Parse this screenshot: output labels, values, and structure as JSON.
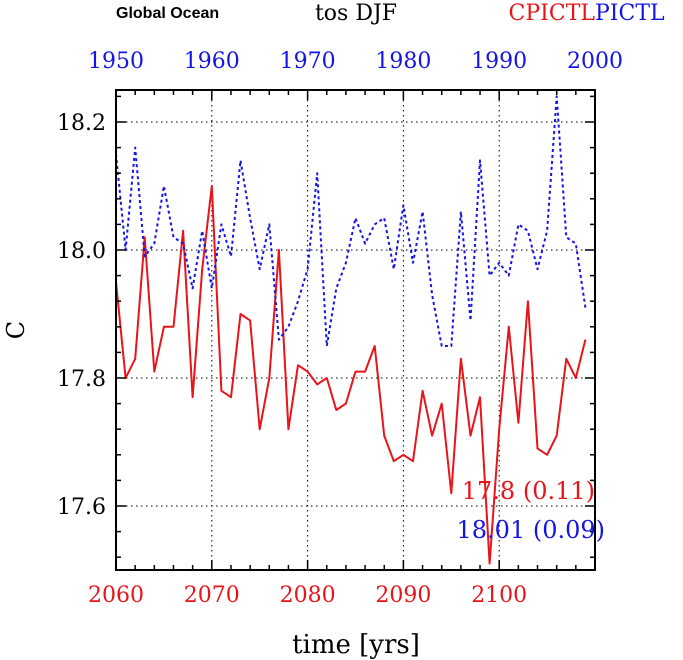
{
  "header": {
    "region": "Global Ocean",
    "variable": "tos DJF",
    "legend_red": "CPICTL",
    "legend_blue": "PICTL"
  },
  "stats": {
    "red": "17.8 (0.11)",
    "blue": "18.01 (0.09)"
  },
  "colors": {
    "red": "#e8141a",
    "blue": "#1414e6",
    "axis": "#000000"
  },
  "chart_data": {
    "type": "line",
    "title": "tos DJF",
    "ylabel": "C",
    "xlabel": "time [yrs]",
    "ylim": [
      17.5,
      18.25
    ],
    "yticks": [
      17.6,
      17.8,
      18.0,
      18.2
    ],
    "ytick_labels": [
      "17.6",
      "17.8",
      "18.0",
      "18.2"
    ],
    "bottom_axis": {
      "range": [
        2060,
        2110
      ],
      "ticks": [
        2060,
        2070,
        2080,
        2090,
        2100
      ],
      "labels": [
        "2060",
        "2070",
        "2080",
        "2090",
        "2100"
      ]
    },
    "top_axis": {
      "range": [
        1950,
        2000
      ],
      "ticks": [
        1950,
        1960,
        1970,
        1980,
        1990,
        2000
      ],
      "labels": [
        "1950",
        "1960",
        "1970",
        "1980",
        "1990",
        "2000"
      ]
    },
    "grid": true,
    "series": [
      {
        "name": "CPICTL",
        "axis": "bottom",
        "style": "solid",
        "x_start": 2060,
        "values": [
          17.95,
          17.8,
          17.83,
          18.02,
          17.81,
          17.88,
          17.88,
          18.03,
          17.77,
          17.97,
          18.1,
          17.78,
          17.77,
          17.9,
          17.89,
          17.72,
          17.8,
          18.0,
          17.72,
          17.82,
          17.81,
          17.79,
          17.8,
          17.75,
          17.76,
          17.81,
          17.81,
          17.85,
          17.71,
          17.67,
          17.68,
          17.67,
          17.78,
          17.71,
          17.76,
          17.62,
          17.83,
          17.71,
          17.77,
          17.51,
          17.72,
          17.88,
          17.73,
          17.92,
          17.69,
          17.68,
          17.71,
          17.83,
          17.8,
          17.86
        ]
      },
      {
        "name": "PICTL",
        "axis": "top",
        "style": "dotted",
        "x_start": 1950,
        "values": [
          18.15,
          18.0,
          18.16,
          17.99,
          18.01,
          18.1,
          18.02,
          18.01,
          17.94,
          18.03,
          17.94,
          18.04,
          17.99,
          18.14,
          18.05,
          17.97,
          18.04,
          17.86,
          17.88,
          17.92,
          17.97,
          18.12,
          17.85,
          17.94,
          17.98,
          18.05,
          18.01,
          18.04,
          18.05,
          17.97,
          18.07,
          17.98,
          18.06,
          17.93,
          17.85,
          17.85,
          18.06,
          17.89,
          18.14,
          17.96,
          17.98,
          17.96,
          18.04,
          18.03,
          17.97,
          18.03,
          18.24,
          18.02,
          18.01,
          17.91
        ]
      }
    ]
  }
}
